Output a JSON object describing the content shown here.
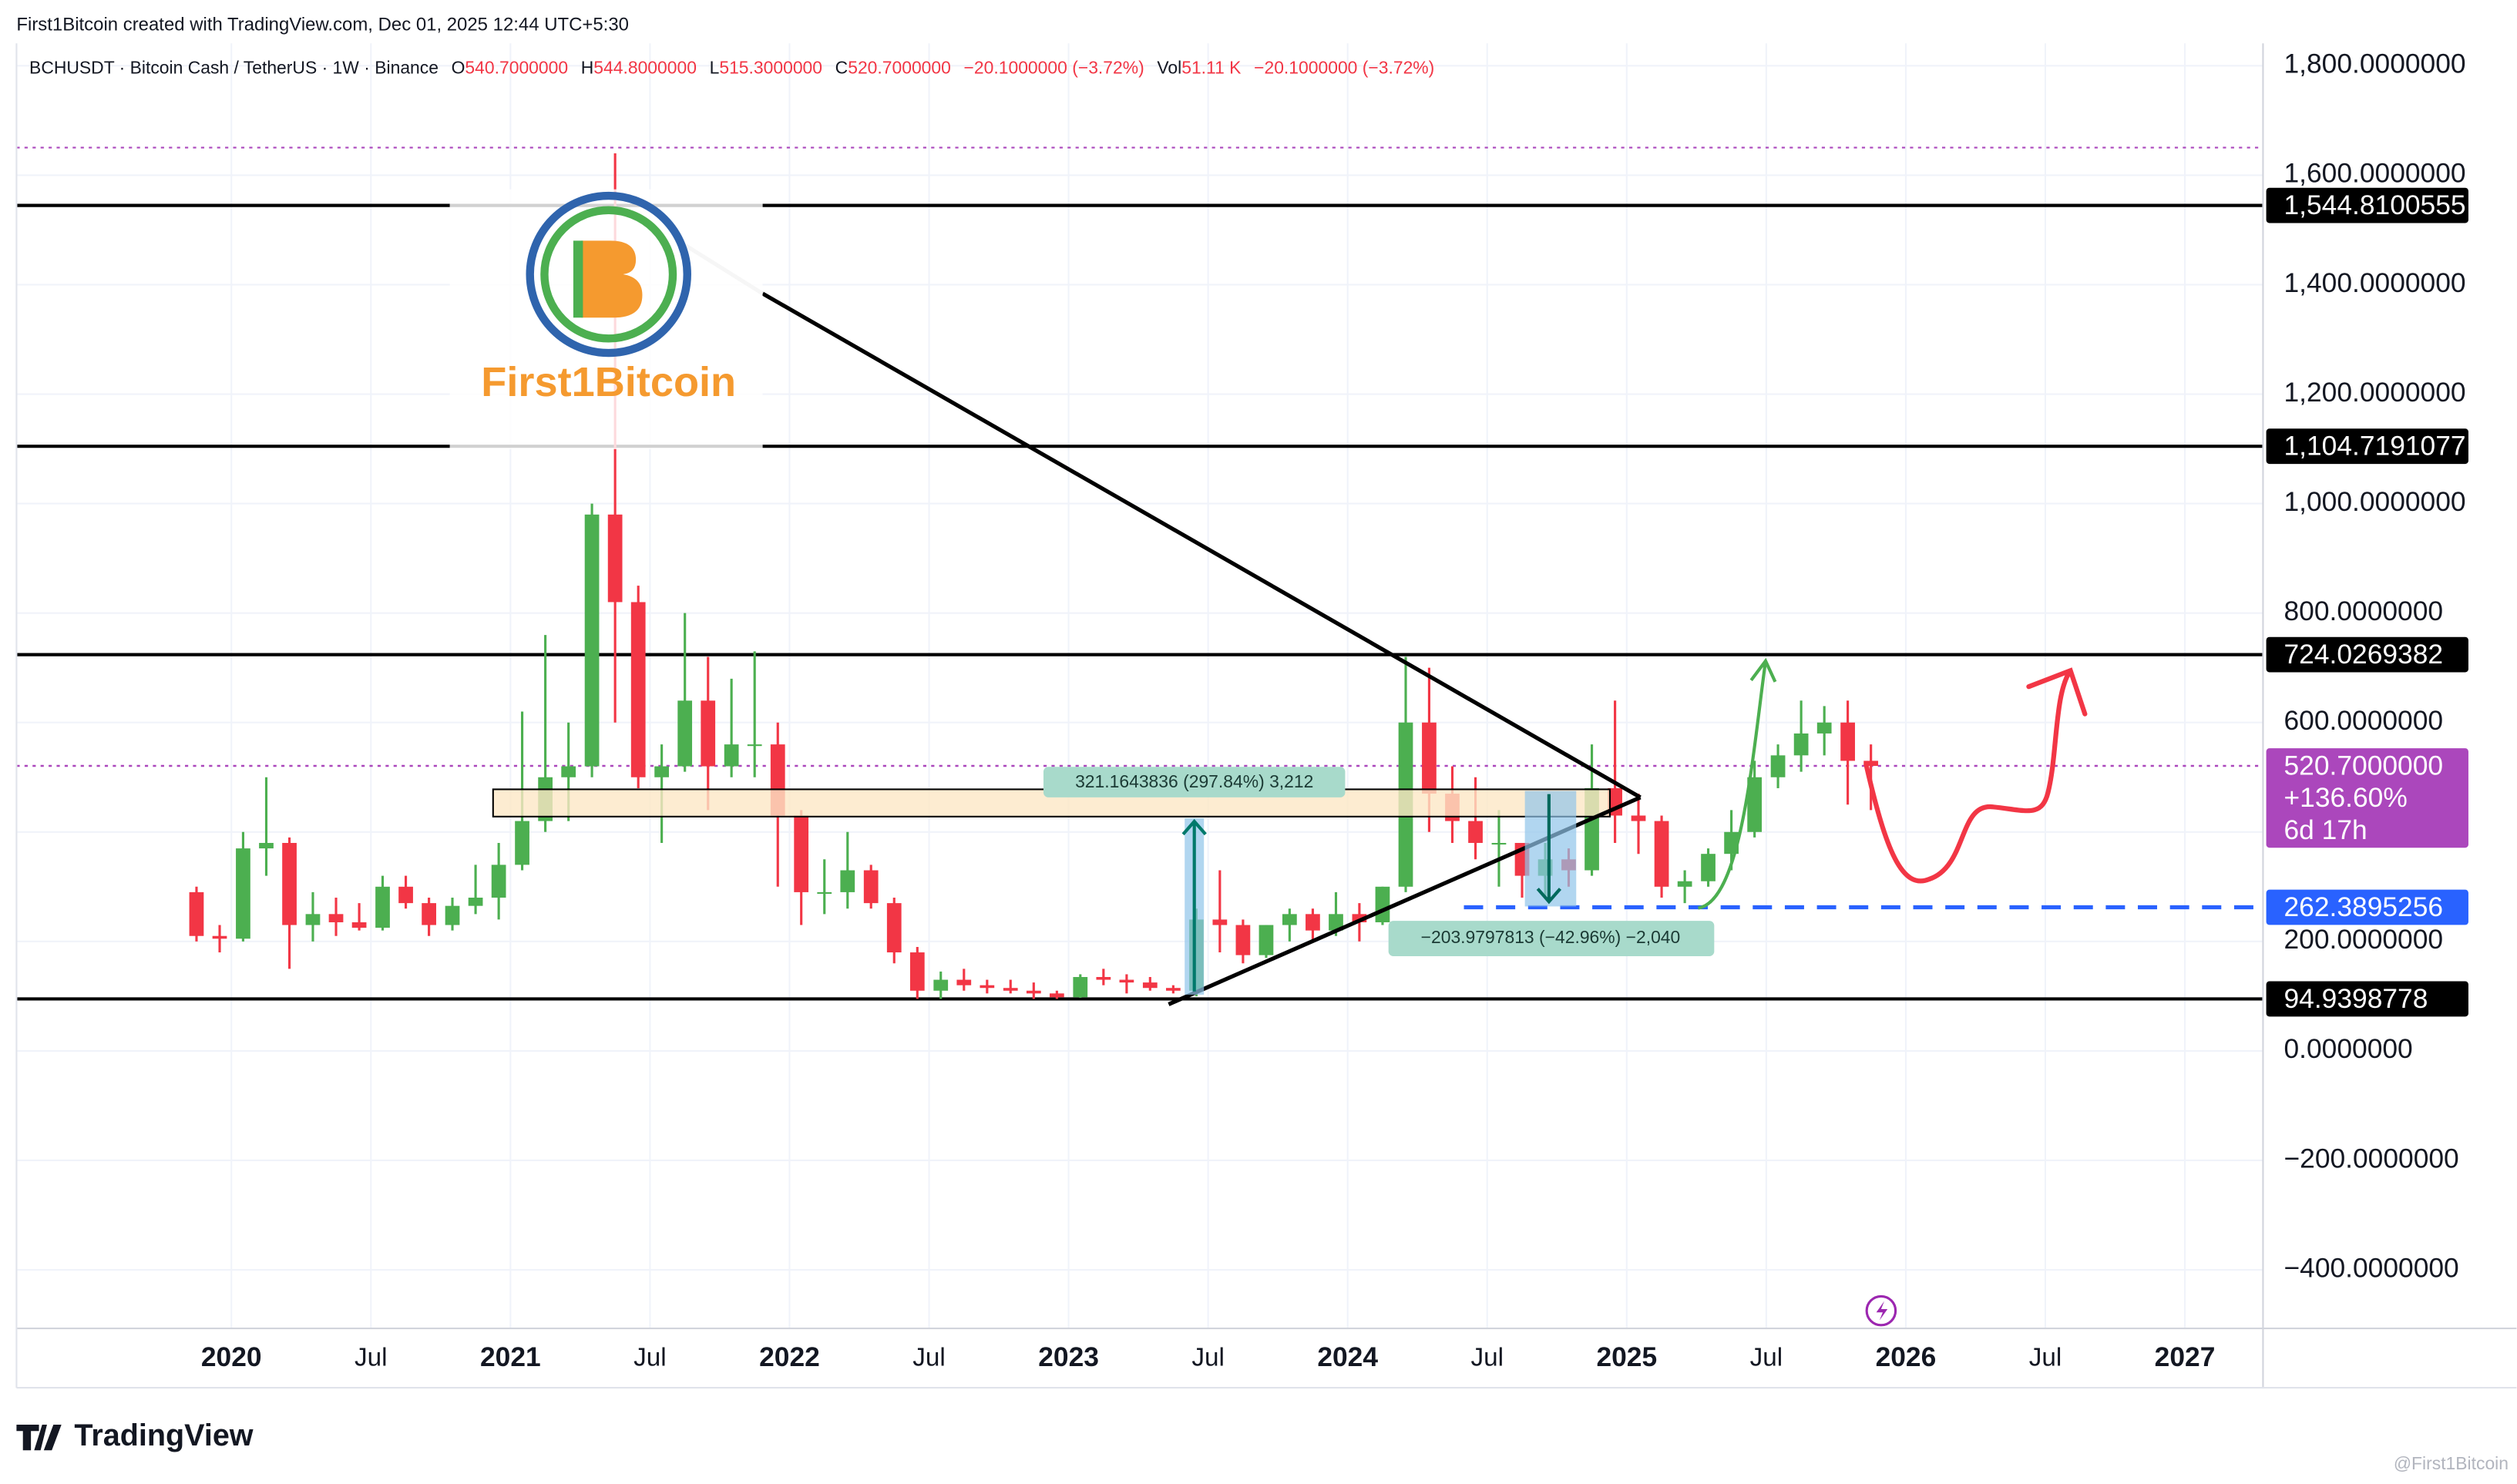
{
  "header": {
    "credit": "First1Bitcoin created with TradingView.com, Dec 01, 2025 12:44 UTC+5:30",
    "ohlc": [
      {
        "label": "O",
        "value": "540.7000000"
      },
      {
        "label": "H",
        "value": "544.8000000"
      },
      {
        "label": "L",
        "value": "515.3000000"
      },
      {
        "label": "C",
        "value": "520.7000000"
      }
    ],
    "change": "−20.1000000 (−3.72%)",
    "volume_label": "Vol",
    "volume": "51.11 K",
    "volume_change": "−20.1000000 (−3.72%)"
  },
  "annotations": {
    "logo_text": "First1Bitcoin",
    "measure_up": "321.1643836 (297.84%) 3,212",
    "measure_down": "−203.9797813 (−42.96%) −2,040"
  },
  "footer": {
    "brand": "TradingView",
    "watermark": "@First1Bitcoin"
  },
  "chart_data": {
    "type": "candlestick",
    "title": "BCHUSDT · Bitcoin Cash / TetherUS · 1W · Binance",
    "up_color": "#4caf50",
    "down_color": "#f23645",
    "grid": true,
    "x": [
      2019.875,
      2019.958,
      2020.042,
      2020.125,
      2020.208,
      2020.292,
      2020.375,
      2020.458,
      2020.542,
      2020.625,
      2020.708,
      2020.792,
      2020.875,
      2020.958,
      2021.042,
      2021.125,
      2021.208,
      2021.292,
      2021.375,
      2021.458,
      2021.542,
      2021.625,
      2021.708,
      2021.792,
      2021.875,
      2021.958,
      2022.042,
      2022.125,
      2022.208,
      2022.292,
      2022.375,
      2022.458,
      2022.542,
      2022.625,
      2022.708,
      2022.792,
      2022.875,
      2022.958,
      2023.042,
      2023.125,
      2023.208,
      2023.292,
      2023.375,
      2023.458,
      2023.542,
      2023.625,
      2023.708,
      2023.792,
      2023.875,
      2023.958,
      2024.042,
      2024.125,
      2024.208,
      2024.292,
      2024.375,
      2024.458,
      2024.542,
      2024.625,
      2024.708,
      2024.792,
      2024.875,
      2024.958,
      2025.042,
      2025.125,
      2025.208,
      2025.292,
      2025.375,
      2025.458,
      2025.542,
      2025.625,
      2025.708,
      2025.792,
      2025.875
    ],
    "open": [
      290,
      210,
      205,
      370,
      380,
      230,
      250,
      235,
      225,
      300,
      270,
      230,
      265,
      280,
      340,
      420,
      500,
      520,
      980,
      820,
      500,
      520,
      640,
      520,
      560,
      560,
      430,
      290,
      290,
      330,
      270,
      180,
      110,
      130,
      120,
      115,
      110,
      105,
      98,
      135,
      130,
      125,
      115,
      110,
      240,
      230,
      175,
      230,
      250,
      220,
      250,
      235,
      300,
      600,
      470,
      420,
      380,
      380,
      320,
      350,
      330,
      480,
      430,
      420,
      300,
      310,
      360,
      400,
      500,
      540,
      580,
      600,
      530
    ],
    "high": [
      300,
      230,
      400,
      500,
      390,
      290,
      280,
      270,
      320,
      320,
      280,
      280,
      340,
      380,
      620,
      760,
      600,
      1000,
      1640,
      850,
      560,
      800,
      720,
      680,
      730,
      600,
      440,
      350,
      400,
      340,
      280,
      190,
      145,
      150,
      130,
      130,
      125,
      110,
      140,
      150,
      140,
      135,
      120,
      260,
      330,
      240,
      230,
      260,
      260,
      290,
      270,
      300,
      720,
      700,
      520,
      500,
      440,
      380,
      380,
      370,
      560,
      640,
      470,
      430,
      330,
      370,
      440,
      530,
      560,
      640,
      630,
      640,
      560
    ],
    "low": [
      200,
      180,
      200,
      320,
      150,
      200,
      210,
      220,
      220,
      260,
      210,
      220,
      250,
      240,
      330,
      400,
      420,
      500,
      600,
      480,
      380,
      510,
      440,
      500,
      500,
      300,
      230,
      250,
      260,
      260,
      160,
      95,
      95,
      110,
      105,
      105,
      95,
      95,
      97,
      120,
      105,
      110,
      105,
      100,
      180,
      160,
      170,
      200,
      200,
      210,
      200,
      230,
      290,
      400,
      380,
      350,
      300,
      280,
      280,
      300,
      320,
      380,
      360,
      280,
      270,
      300,
      330,
      390,
      480,
      510,
      540,
      450,
      440
    ],
    "close": [
      210,
      205,
      370,
      380,
      230,
      250,
      235,
      225,
      300,
      270,
      230,
      265,
      280,
      340,
      420,
      500,
      520,
      980,
      820,
      500,
      520,
      640,
      520,
      560,
      560,
      430,
      290,
      290,
      330,
      270,
      180,
      110,
      130,
      120,
      115,
      110,
      105,
      98,
      135,
      130,
      125,
      115,
      110,
      240,
      230,
      175,
      230,
      250,
      220,
      250,
      235,
      300,
      600,
      470,
      420,
      380,
      380,
      320,
      350,
      330,
      480,
      430,
      420,
      300,
      310,
      360,
      400,
      500,
      540,
      580,
      600,
      530,
      520.7
    ],
    "xlim": [
      2019.23,
      2027.28
    ],
    "xticks": [
      2020,
      {
        "value": 2020.5,
        "label": "Jul"
      },
      2021,
      {
        "value": 2021.5,
        "label": "Jul"
      },
      2022,
      {
        "value": 2022.5,
        "label": "Jul"
      },
      2023,
      {
        "value": 2023.5,
        "label": "Jul"
      },
      2024,
      {
        "value": 2024.5,
        "label": "Jul"
      },
      2025,
      {
        "value": 2025.5,
        "label": "Jul"
      },
      2026,
      {
        "value": 2026.5,
        "label": "Jul"
      },
      2027
    ],
    "ylim": [
      -507,
      1841
    ],
    "yticks": [
      {
        "value": -400,
        "label": "−400.0000000"
      },
      {
        "value": -200,
        "label": "−200.0000000"
      },
      {
        "value": 0,
        "label": "0.0000000"
      },
      {
        "value": 200,
        "label": "200.0000000"
      },
      {
        "value": 400,
        "label": "400.0000000"
      },
      {
        "value": 600,
        "label": "600.0000000"
      },
      {
        "value": 800,
        "label": "800.0000000"
      },
      {
        "value": 1000,
        "label": "1,000.0000000"
      },
      {
        "value": 1200,
        "label": "1,200.0000000"
      },
      {
        "value": 1400,
        "label": "1,400.0000000"
      },
      {
        "value": 1600,
        "label": "1,600.0000000"
      },
      {
        "value": 1800,
        "label": "1,800.0000000"
      }
    ],
    "levels": [
      {
        "value": 1544.8100555,
        "label": "1,544.8100555"
      },
      {
        "value": 1104.7191077,
        "label": "1,104.7191077"
      },
      {
        "value": 724.0269382,
        "label": "724.0269382"
      },
      {
        "value": 94.9398778,
        "label": "94.9398778"
      }
    ],
    "level_color": "#000000",
    "support": {
      "value": 262.3895256,
      "label": "262.3895256",
      "color": "#2962ff"
    },
    "last_price": {
      "value": 520.7,
      "label": "520.7000000",
      "change": "+136.60%",
      "countdown": "6d 17h",
      "color": "#ab47bc"
    }
  }
}
